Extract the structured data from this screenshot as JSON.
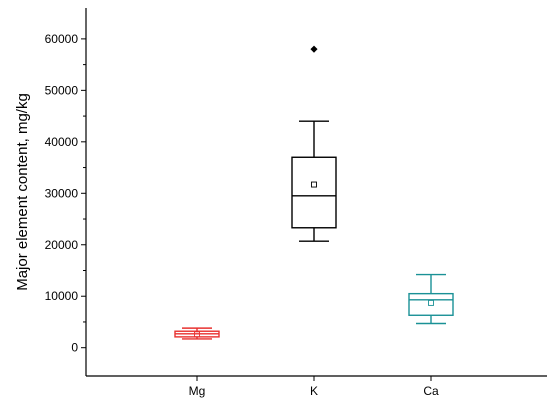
{
  "chart_data": {
    "type": "box",
    "title": "",
    "xlabel": "",
    "ylabel": "Major element content, mg/kg",
    "ylim": [
      -5500,
      66000
    ],
    "yticks": [
      0,
      10000,
      20000,
      30000,
      40000,
      50000,
      60000
    ],
    "ytick_labels": [
      "0",
      "10000",
      "20000",
      "30000",
      "40000",
      "50000",
      "60000"
    ],
    "categories": [
      "Mg",
      "K",
      "Ca"
    ],
    "grid": false,
    "legend": "none",
    "boxes": [
      {
        "name": "Mg",
        "color": "#e8312f",
        "whisker_low": 1700,
        "q1": 2100,
        "median": 2700,
        "q3": 3200,
        "whisker_high": 3800,
        "mean": 2600,
        "outliers": []
      },
      {
        "name": "K",
        "color": "#000000",
        "whisker_low": 20700,
        "q1": 23300,
        "median": 29500,
        "q3": 37000,
        "whisker_high": 44000,
        "mean": 31700,
        "outliers": [
          58000
        ]
      },
      {
        "name": "Ca",
        "color": "#1a9196",
        "whisker_low": 4700,
        "q1": 6300,
        "median": 9300,
        "q3": 10500,
        "whisker_high": 14200,
        "mean": 8700,
        "outliers": []
      }
    ]
  }
}
